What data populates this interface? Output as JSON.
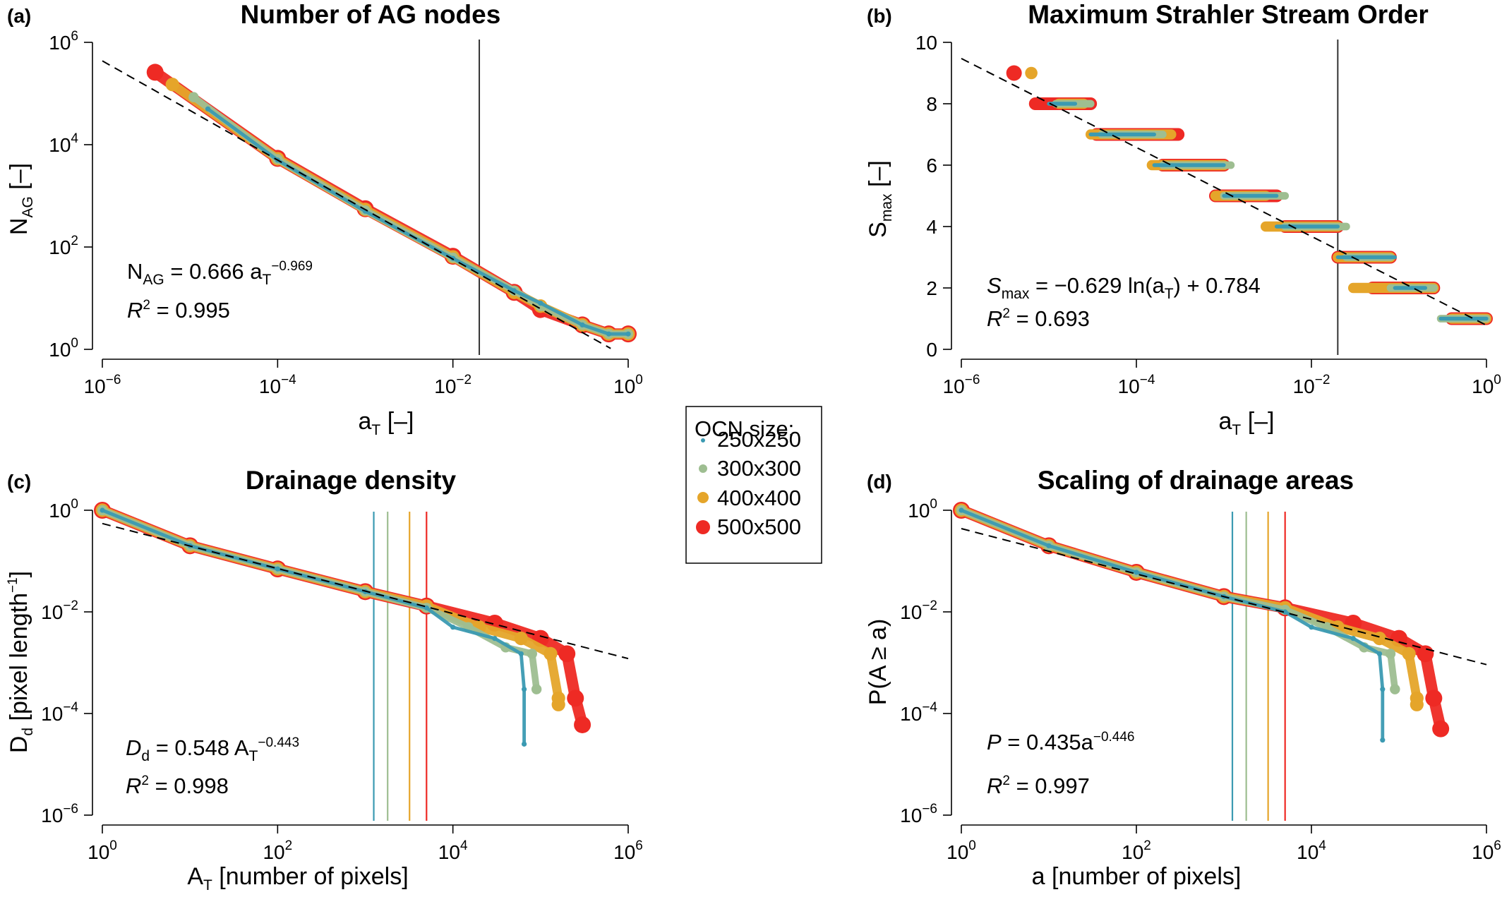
{
  "legend": {
    "title": "OCN size:",
    "items": [
      {
        "label": "250x250",
        "color": "#3b9ab2",
        "size": "small"
      },
      {
        "label": "300x300",
        "color": "#9ebe91",
        "size": "medium"
      },
      {
        "label": "400x400",
        "color": "#e5a52a",
        "size": "large"
      },
      {
        "label": "500x500",
        "color": "#ee2a24",
        "size": "xlarge"
      }
    ]
  },
  "chart_data": [
    {
      "panel": "(a)",
      "type": "scatter",
      "title": "Number of AG nodes",
      "xlabel": "a_T [–]",
      "ylabel": "N_AG [–]",
      "xscale": "log",
      "yscale": "log",
      "xlim": [
        1e-06,
        1
      ],
      "ylim": [
        1,
        1000000.0
      ],
      "xticks": [
        "10^-6",
        "10^-4",
        "10^-2",
        "10^0"
      ],
      "yticks": [
        "10^0",
        "10^2",
        "10^4",
        "10^6"
      ],
      "vline": 0.02,
      "fit": {
        "type": "power",
        "coef": 0.666,
        "exp": -0.969
      },
      "annotation_lines": [
        "N_AG = 0.666 a_T^−0.969",
        "R² = 0.995"
      ],
      "series": [
        {
          "name": "250x250",
          "points": [
            [
              1.6e-05,
              50000
            ],
            [
              0.0001,
              5000
            ],
            [
              0.001,
              500
            ],
            [
              0.01,
              60
            ],
            [
              0.05,
              14
            ],
            [
              0.1,
              8
            ],
            [
              0.3,
              3
            ],
            [
              0.6,
              2
            ],
            [
              1.0,
              2
            ]
          ]
        },
        {
          "name": "300x300",
          "points": [
            [
              1.1e-05,
              85000
            ],
            [
              0.0001,
              5200
            ],
            [
              0.001,
              520
            ],
            [
              0.01,
              62
            ],
            [
              0.05,
              14
            ],
            [
              0.1,
              7
            ],
            [
              0.3,
              3
            ],
            [
              0.6,
              2
            ],
            [
              1.0,
              2
            ]
          ]
        },
        {
          "name": "400x400",
          "points": [
            [
              6.3e-06,
              150000
            ],
            [
              0.0001,
              5300
            ],
            [
              0.001,
              540
            ],
            [
              0.01,
              64
            ],
            [
              0.05,
              13
            ],
            [
              0.1,
              7
            ],
            [
              0.3,
              3
            ],
            [
              0.6,
              2
            ],
            [
              1.0,
              2
            ]
          ]
        },
        {
          "name": "500x500",
          "points": [
            [
              4e-06,
              260000
            ],
            [
              0.0001,
              5400
            ],
            [
              0.001,
              560
            ],
            [
              0.01,
              66
            ],
            [
              0.05,
              13
            ],
            [
              0.1,
              6
            ],
            [
              0.3,
              3
            ],
            [
              0.6,
              2
            ],
            [
              1.0,
              2
            ]
          ]
        }
      ]
    },
    {
      "panel": "(b)",
      "type": "scatter",
      "title": "Maximum Strahler Stream Order",
      "xlabel": "a_T [–]",
      "ylabel": "S_max [–]",
      "xscale": "log",
      "yscale": "linear",
      "xlim": [
        1e-06,
        1
      ],
      "ylim": [
        0,
        10
      ],
      "xticks": [
        "10^-6",
        "10^-4",
        "10^-2",
        "10^0"
      ],
      "yticks": [
        "0",
        "2",
        "4",
        "6",
        "8",
        "10"
      ],
      "vline": 0.02,
      "fit": {
        "type": "log",
        "coef": -0.629,
        "intercept": 0.784
      },
      "annotation_lines": [
        "S_max = −0.629 ln(a_T) + 0.784",
        "R² = 0.693"
      ],
      "series": [
        {
          "name": "250x250",
          "steps": [
            [
              8,
              1e-05,
              2e-05
            ],
            [
              7,
              3e-05,
              0.00016
            ],
            [
              6,
              0.00016,
              0.001
            ],
            [
              5,
              0.001,
              0.004
            ],
            [
              4,
              0.004,
              0.02
            ],
            [
              3,
              0.02,
              0.09
            ],
            [
              2,
              0.09,
              0.2
            ],
            [
              1,
              0.3,
              1
            ]
          ]
        },
        {
          "name": "300x300",
          "steps": [
            [
              8,
              1.2e-05,
              3e-05
            ],
            [
              7,
              4e-05,
              0.0002
            ],
            [
              6,
              0.0002,
              0.0012
            ],
            [
              5,
              0.001,
              0.005
            ],
            [
              4,
              0.005,
              0.025
            ],
            [
              3,
              0.025,
              0.08
            ],
            [
              2,
              0.08,
              0.25
            ],
            [
              1,
              0.3,
              1
            ]
          ]
        },
        {
          "name": "400x400",
          "points": [
            [
              6.3e-06,
              9
            ]
          ],
          "steps": [
            [
              8,
              1.3e-05,
              2.5e-05
            ],
            [
              7,
              3e-05,
              0.00025
            ],
            [
              6,
              0.00015,
              0.001
            ],
            [
              5,
              0.0008,
              0.003
            ],
            [
              4,
              0.003,
              0.02
            ],
            [
              3,
              0.02,
              0.08
            ],
            [
              2,
              0.03,
              0.25
            ],
            [
              1,
              0.4,
              1
            ]
          ]
        },
        {
          "name": "500x500",
          "points": [
            [
              4e-06,
              9
            ]
          ],
          "steps": [
            [
              8,
              7e-06,
              3e-05
            ],
            [
              7,
              3.5e-05,
              0.0003
            ],
            [
              6,
              0.0002,
              0.001
            ],
            [
              5,
              0.0008,
              0.004
            ],
            [
              4,
              0.005,
              0.02
            ],
            [
              3,
              0.02,
              0.08
            ],
            [
              2,
              0.05,
              0.25
            ],
            [
              1,
              0.4,
              1
            ]
          ]
        }
      ]
    },
    {
      "panel": "(c)",
      "type": "scatter",
      "title": "Drainage density",
      "xlabel": "A_T [number of pixels]",
      "ylabel": "D_d [pixel length^−1]",
      "xscale": "log",
      "yscale": "log",
      "xlim": [
        1,
        1000000.0
      ],
      "ylim": [
        1e-06,
        1
      ],
      "xticks": [
        "10^0",
        "10^2",
        "10^4",
        "10^6"
      ],
      "yticks": [
        "10^-6",
        "10^-4",
        "10^-2",
        "10^0"
      ],
      "vlines": [
        {
          "x": 1250,
          "series": "250x250"
        },
        {
          "x": 1800,
          "series": "300x300"
        },
        {
          "x": 3200,
          "series": "400x400"
        },
        {
          "x": 5000,
          "series": "500x500"
        }
      ],
      "fit": {
        "type": "power",
        "coef": 0.548,
        "exp": -0.443
      },
      "annotation_lines": [
        "D_d = 0.548 A_T^−0.443",
        "R² = 0.998"
      ],
      "series": [
        {
          "name": "250x250",
          "points": [
            [
              1,
              1
            ],
            [
              10,
              0.2
            ],
            [
              100,
              0.07
            ],
            [
              1000,
              0.025
            ],
            [
              5000,
              0.012
            ],
            [
              10000,
              0.005
            ],
            [
              30000,
              0.003
            ],
            [
              60000,
              0.0015
            ],
            [
              65000,
              0.0003
            ],
            [
              65000,
              2.5e-05
            ]
          ]
        },
        {
          "name": "300x300",
          "points": [
            [
              1,
              1
            ],
            [
              10,
              0.2
            ],
            [
              100,
              0.07
            ],
            [
              1000,
              0.025
            ],
            [
              5000,
              0.012
            ],
            [
              15000,
              0.005
            ],
            [
              40000,
              0.002
            ],
            [
              80000,
              0.0015
            ],
            [
              90000,
              0.0003
            ]
          ]
        },
        {
          "name": "400x400",
          "points": [
            [
              1,
              1
            ],
            [
              10,
              0.2
            ],
            [
              100,
              0.07
            ],
            [
              1000,
              0.025
            ],
            [
              5000,
              0.013
            ],
            [
              20000,
              0.005
            ],
            [
              60000,
              0.003
            ],
            [
              130000,
              0.0015
            ],
            [
              160000,
              0.0002
            ],
            [
              160000,
              0.00015
            ]
          ]
        },
        {
          "name": "500x500",
          "points": [
            [
              1,
              1
            ],
            [
              10,
              0.2
            ],
            [
              100,
              0.07
            ],
            [
              1000,
              0.025
            ],
            [
              5000,
              0.013
            ],
            [
              30000,
              0.006
            ],
            [
              100000,
              0.003
            ],
            [
              200000,
              0.0015
            ],
            [
              250000,
              0.0002
            ],
            [
              300000,
              6e-05
            ]
          ]
        }
      ]
    },
    {
      "panel": "(d)",
      "type": "scatter",
      "title": "Scaling of drainage areas",
      "xlabel": "a [number of pixels]",
      "ylabel": "P(A ≥ a)",
      "xscale": "log",
      "yscale": "log",
      "xlim": [
        1,
        1000000.0
      ],
      "ylim": [
        1e-06,
        1
      ],
      "xticks": [
        "10^0",
        "10^2",
        "10^4",
        "10^6"
      ],
      "yticks": [
        "10^-6",
        "10^-4",
        "10^-2",
        "10^0"
      ],
      "vlines": [
        {
          "x": 1250,
          "series": "250x250"
        },
        {
          "x": 1800,
          "series": "300x300"
        },
        {
          "x": 3200,
          "series": "400x400"
        },
        {
          "x": 5000,
          "series": "500x500"
        }
      ],
      "fit": {
        "type": "power",
        "coef": 0.435,
        "exp": -0.446
      },
      "annotation_lines": [
        "P = 0.435a^−0.446",
        "R² = 0.997"
      ],
      "series": [
        {
          "name": "250x250",
          "points": [
            [
              1,
              1
            ],
            [
              10,
              0.2
            ],
            [
              100,
              0.06
            ],
            [
              1000,
              0.02
            ],
            [
              5000,
              0.01
            ],
            [
              10000,
              0.005
            ],
            [
              30000,
              0.003
            ],
            [
              60000,
              0.0015
            ],
            [
              65000,
              0.0003
            ],
            [
              65000,
              3e-05
            ]
          ]
        },
        {
          "name": "300x300",
          "points": [
            [
              1,
              1
            ],
            [
              10,
              0.2
            ],
            [
              100,
              0.06
            ],
            [
              1000,
              0.02
            ],
            [
              5000,
              0.011
            ],
            [
              15000,
              0.005
            ],
            [
              40000,
              0.002
            ],
            [
              80000,
              0.0015
            ],
            [
              90000,
              0.0003
            ]
          ]
        },
        {
          "name": "400x400",
          "points": [
            [
              1,
              1
            ],
            [
              10,
              0.2
            ],
            [
              100,
              0.06
            ],
            [
              1000,
              0.02
            ],
            [
              5000,
              0.012
            ],
            [
              20000,
              0.005
            ],
            [
              60000,
              0.003
            ],
            [
              130000,
              0.0015
            ],
            [
              160000,
              0.0002
            ],
            [
              160000,
              0.00015
            ]
          ]
        },
        {
          "name": "500x500",
          "points": [
            [
              1,
              1
            ],
            [
              10,
              0.2
            ],
            [
              100,
              0.06
            ],
            [
              1000,
              0.02
            ],
            [
              5000,
              0.012
            ],
            [
              30000,
              0.006
            ],
            [
              100000,
              0.003
            ],
            [
              200000,
              0.0015
            ],
            [
              250000,
              0.0002
            ],
            [
              300000,
              5e-05
            ]
          ]
        }
      ]
    }
  ]
}
